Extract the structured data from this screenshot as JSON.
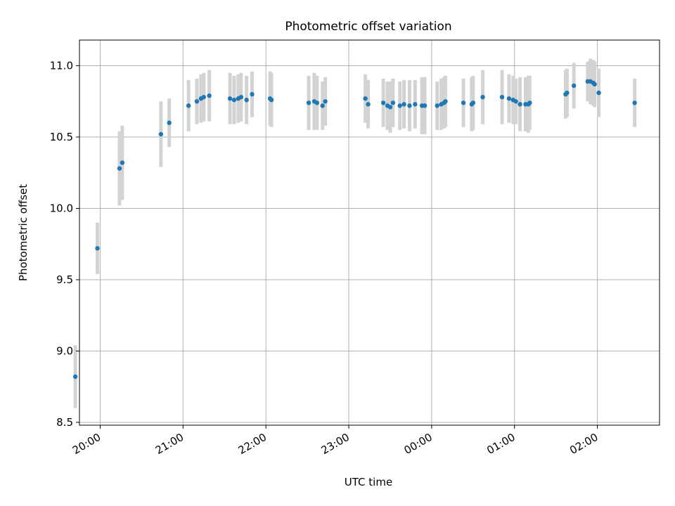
{
  "chart_data": {
    "type": "scatter",
    "title": "Photometric offset variation",
    "xlabel": "UTC time",
    "ylabel": "Photometric offset",
    "x_axis": {
      "kind": "time",
      "ticks": [
        "20:00",
        "21:00",
        "22:00",
        "23:00",
        "00:00",
        "01:00",
        "02:00"
      ],
      "range": [
        "19:45",
        "02:45"
      ],
      "tick_label_rotation_deg": 30
    },
    "y_axis": {
      "ticks": [
        "8.5",
        "9.0",
        "9.5",
        "10.0",
        "10.5",
        "11.0"
      ],
      "range": [
        8.48,
        11.18
      ]
    },
    "grid": true,
    "colors": {
      "points": "#1f77b4",
      "errorbars": "#d3d3d3",
      "grid": "#b0b0b0"
    },
    "series": [
      {
        "x": [
          "19:42",
          "19:58",
          "20:14",
          "20:16",
          "20:44",
          "20:50",
          "21:04",
          "21:10",
          "21:13",
          "21:15",
          "21:19",
          "21:34",
          "21:37",
          "21:40",
          "21:42",
          "21:46",
          "21:50",
          "22:03",
          "22:04",
          "22:31",
          "22:35",
          "22:37",
          "22:41",
          "22:43",
          "23:12",
          "23:14",
          "23:25",
          "23:28",
          "23:30",
          "23:32",
          "23:37",
          "23:40",
          "23:44",
          "23:48",
          "23:53",
          "23:55",
          "24:04",
          "24:07",
          "24:09",
          "24:10",
          "24:23",
          "24:29",
          "24:30",
          "24:37",
          "24:51",
          "24:56",
          "24:59",
          "25:01",
          "25:04",
          "25:08",
          "25:10",
          "25:11",
          "25:37",
          "25:38",
          "25:43",
          "25:53",
          "25:55",
          "25:57",
          "25:58",
          "26:01",
          "26:27"
        ],
        "y": [
          8.82,
          9.72,
          10.28,
          10.32,
          10.52,
          10.6,
          10.72,
          10.75,
          10.77,
          10.78,
          10.79,
          10.77,
          10.76,
          10.77,
          10.78,
          10.76,
          10.8,
          10.77,
          10.76,
          10.74,
          10.75,
          10.74,
          10.72,
          10.75,
          10.77,
          10.73,
          10.74,
          10.72,
          10.71,
          10.74,
          10.72,
          10.73,
          10.72,
          10.73,
          10.72,
          10.72,
          10.72,
          10.73,
          10.74,
          10.75,
          10.74,
          10.73,
          10.74,
          10.78,
          10.78,
          10.77,
          10.76,
          10.75,
          10.73,
          10.73,
          10.73,
          10.74,
          10.8,
          10.81,
          10.86,
          10.89,
          10.89,
          10.88,
          10.87,
          10.81,
          10.74
        ],
        "err": [
          0.22,
          0.18,
          0.26,
          0.26,
          0.23,
          0.17,
          0.18,
          0.16,
          0.17,
          0.17,
          0.18,
          0.18,
          0.17,
          0.17,
          0.17,
          0.17,
          0.16,
          0.19,
          0.19,
          0.19,
          0.2,
          0.19,
          0.17,
          0.17,
          0.17,
          0.17,
          0.17,
          0.17,
          0.18,
          0.17,
          0.17,
          0.17,
          0.18,
          0.17,
          0.2,
          0.2,
          0.17,
          0.18,
          0.18,
          0.18,
          0.17,
          0.19,
          0.19,
          0.19,
          0.19,
          0.17,
          0.17,
          0.16,
          0.19,
          0.19,
          0.2,
          0.19,
          0.17,
          0.17,
          0.16,
          0.14,
          0.16,
          0.16,
          0.16,
          0.17,
          0.17
        ]
      }
    ]
  }
}
